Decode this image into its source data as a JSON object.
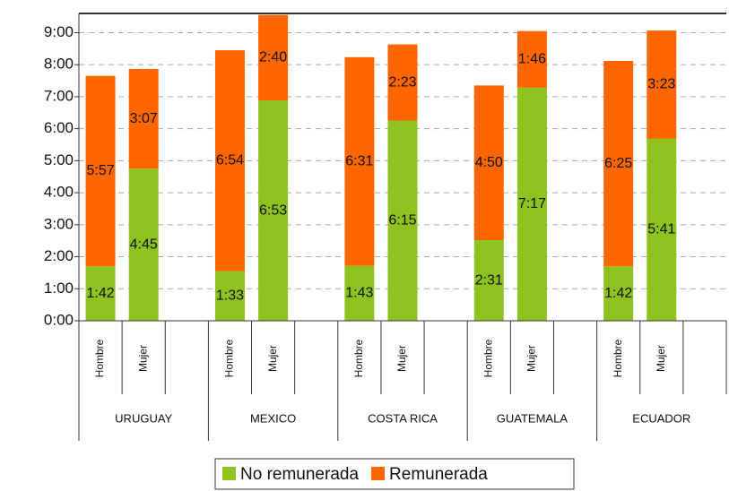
{
  "chart_data": {
    "type": "stacked_bar",
    "groups": [
      "URUGUAY",
      "MEXICO",
      "COSTA RICA",
      "GUATEMALA",
      "ECUADOR"
    ],
    "categories": [
      "Hombre",
      "Mujer",
      "Hombre",
      "Mujer",
      "Hombre",
      "Mujer",
      "Hombre",
      "Mujer",
      "Hombre",
      "Mujer"
    ],
    "series": [
      {
        "name": "No remunerada",
        "color": "#8dc21f",
        "values": [
          1.7,
          4.75,
          1.55,
          6.883,
          1.717,
          6.25,
          2.517,
          7.283,
          1.7,
          5.683
        ],
        "value_labels": [
          "1:42",
          "4:45",
          "1:33",
          "6:53",
          "1:43",
          "6:15",
          "2:31",
          "7:17",
          "1:42",
          "5:41"
        ]
      },
      {
        "name": "Remunerada",
        "color": "#ff6600",
        "values": [
          5.95,
          3.117,
          6.9,
          2.667,
          6.517,
          2.383,
          4.833,
          1.767,
          6.417,
          3.383
        ],
        "value_labels": [
          "5:57",
          "3:07",
          "6:54",
          "2:40",
          "6:31",
          "2:23",
          "4:50",
          "1:46",
          "6:25",
          "3:23"
        ]
      }
    ],
    "ylim": [
      0,
      9.6
    ],
    "yticks": [
      {
        "value": 0,
        "label": "0:00"
      },
      {
        "value": 1,
        "label": "1:00"
      },
      {
        "value": 2,
        "label": "2:00"
      },
      {
        "value": 3,
        "label": "3:00"
      },
      {
        "value": 4,
        "label": "4:00"
      },
      {
        "value": 5,
        "label": "5:00"
      },
      {
        "value": 6,
        "label": "6:00"
      },
      {
        "value": 7,
        "label": "7:00"
      },
      {
        "value": 8,
        "label": "8:00"
      },
      {
        "value": 9,
        "label": "9:00"
      }
    ],
    "grid": true,
    "legend": "bottom"
  }
}
